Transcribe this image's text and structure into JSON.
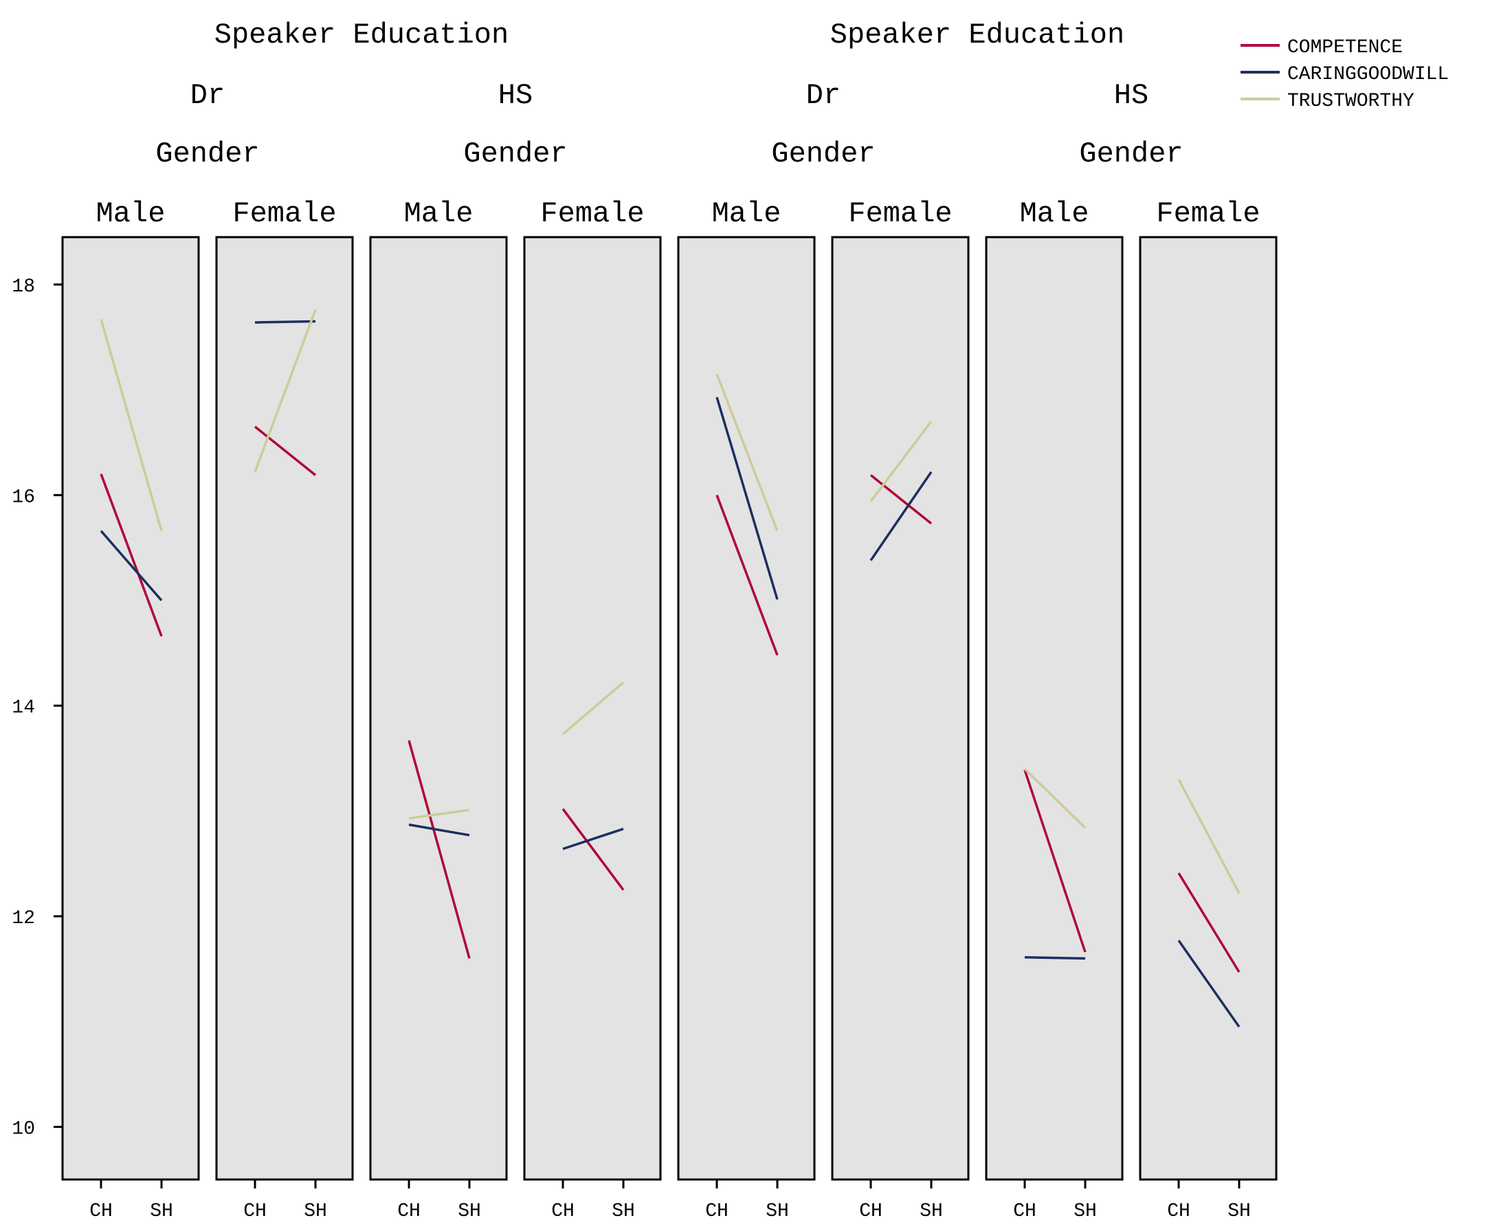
{
  "chart_data": {
    "type": "line",
    "facets": {
      "level1_title": "Speaker Education",
      "level1": [
        "Dr",
        "HS",
        "Dr",
        "HS"
      ],
      "level2_title": "Gender",
      "level2": [
        "Male",
        "Female"
      ]
    },
    "x_categories": [
      "CH",
      "SH"
    ],
    "ylim": [
      9.5,
      18.45
    ],
    "yticks": [
      10,
      12,
      14,
      16,
      18
    ],
    "grid": false,
    "legend_position": "top-right",
    "series": [
      {
        "name": "COMPETENCE",
        "color": "#b0063a"
      },
      {
        "name": "CARINGGOODWILL",
        "color": "#1c2f61"
      },
      {
        "name": "TRUSTWORTHY",
        "color": "#cdcb9a"
      }
    ],
    "panels": [
      {
        "education": "Dr",
        "gender": "Male",
        "values": {
          "COMPETENCE": [
            16.2,
            14.66
          ],
          "CARINGGOODWILL": [
            15.66,
            15.0
          ],
          "TRUSTWORTHY": [
            17.67,
            15.66
          ]
        }
      },
      {
        "education": "Dr",
        "gender": "Female",
        "values": {
          "COMPETENCE": [
            16.65,
            16.19
          ],
          "CARINGGOODWILL": [
            17.64,
            17.65
          ],
          "TRUSTWORTHY": [
            16.22,
            17.76
          ]
        }
      },
      {
        "education": "HS",
        "gender": "Male",
        "values": {
          "COMPETENCE": [
            13.67,
            11.6
          ],
          "CARINGGOODWILL": [
            12.87,
            12.77
          ],
          "TRUSTWORTHY": [
            12.93,
            13.01
          ]
        }
      },
      {
        "education": "HS",
        "gender": "Female",
        "values": {
          "COMPETENCE": [
            13.02,
            12.25
          ],
          "CARINGGOODWILL": [
            12.64,
            12.83
          ],
          "TRUSTWORTHY": [
            13.73,
            14.22
          ]
        }
      },
      {
        "education": "Dr",
        "gender": "Male",
        "values": {
          "COMPETENCE": [
            16.0,
            14.48
          ],
          "CARINGGOODWILL": [
            16.93,
            15.01
          ],
          "TRUSTWORTHY": [
            17.15,
            15.66
          ]
        }
      },
      {
        "education": "Dr",
        "gender": "Female",
        "values": {
          "COMPETENCE": [
            16.19,
            15.73
          ],
          "CARINGGOODWILL": [
            15.38,
            16.22
          ],
          "TRUSTWORTHY": [
            15.94,
            16.7
          ]
        }
      },
      {
        "education": "HS",
        "gender": "Male",
        "values": {
          "COMPETENCE": [
            13.39,
            11.66
          ],
          "CARINGGOODWILL": [
            11.61,
            11.6
          ],
          "TRUSTWORTHY": [
            13.4,
            12.84
          ]
        }
      },
      {
        "education": "HS",
        "gender": "Female",
        "values": {
          "COMPETENCE": [
            12.41,
            11.47
          ],
          "CARINGGOODWILL": [
            11.77,
            10.95
          ],
          "TRUSTWORTHY": [
            13.3,
            12.22
          ]
        }
      }
    ]
  }
}
